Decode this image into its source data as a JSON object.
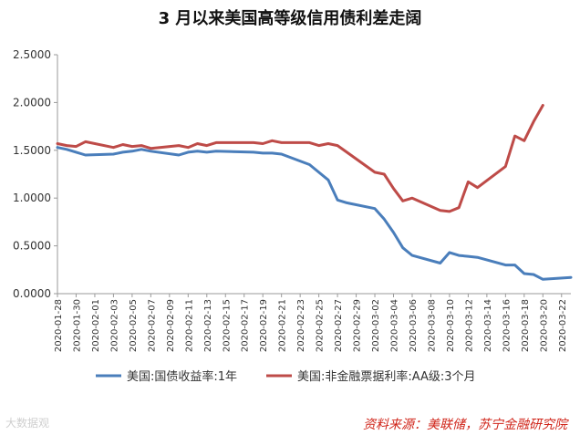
{
  "title": "3 月以来美国高等级信用债利差走阔",
  "source": "资料来源：美联储，苏宁金融研究院",
  "watermark": "大数据观",
  "chart_data": {
    "type": "line",
    "title": "3 月以来美国高等级信用债利差走阔",
    "xlabel": "",
    "ylabel": "",
    "ylim": [
      0,
      2.5
    ],
    "yticks": [
      "0.0000",
      "0.5000",
      "1.0000",
      "1.5000",
      "2.0000",
      "2.5000"
    ],
    "grid": false,
    "legend": "bottom",
    "x": [
      "2020-01-28",
      "2020-01-29",
      "2020-01-30",
      "2020-01-31",
      "2020-02-03",
      "2020-02-04",
      "2020-02-05",
      "2020-02-06",
      "2020-02-07",
      "2020-02-10",
      "2020-02-11",
      "2020-02-12",
      "2020-02-13",
      "2020-02-14",
      "2020-02-18",
      "2020-02-19",
      "2020-02-20",
      "2020-02-21",
      "2020-02-24",
      "2020-02-25",
      "2020-02-26",
      "2020-02-27",
      "2020-02-28",
      "2020-03-02",
      "2020-03-03",
      "2020-03-04",
      "2020-03-05",
      "2020-03-06",
      "2020-03-09",
      "2020-03-10",
      "2020-03-11",
      "2020-03-12",
      "2020-03-13",
      "2020-03-16",
      "2020-03-17",
      "2020-03-18",
      "2020-03-19",
      "2020-03-20",
      "2020-03-23"
    ],
    "xticks": [
      "2020-01-28",
      "2020-01-30",
      "2020-02-01",
      "2020-02-03",
      "2020-02-05",
      "2020-02-07",
      "2020-02-09",
      "2020-02-11",
      "2020-02-13",
      "2020-02-15",
      "2020-02-17",
      "2020-02-19",
      "2020-02-21",
      "2020-02-23",
      "2020-02-25",
      "2020-02-27",
      "2020-02-29",
      "2020-03-02",
      "2020-03-04",
      "2020-03-06",
      "2020-03-08",
      "2020-03-10",
      "2020-03-12",
      "2020-03-14",
      "2020-03-16",
      "2020-03-18",
      "2020-03-20",
      "2020-03-22"
    ],
    "series": [
      {
        "name": "美国:国债收益率:1年",
        "color": "#4a7ebb",
        "values": [
          1.53,
          1.51,
          1.48,
          1.45,
          1.46,
          1.48,
          1.49,
          1.51,
          1.49,
          1.45,
          1.48,
          1.49,
          1.48,
          1.49,
          1.48,
          1.47,
          1.47,
          1.46,
          1.35,
          1.27,
          1.19,
          0.98,
          0.95,
          0.89,
          0.78,
          0.64,
          0.48,
          0.4,
          0.32,
          0.43,
          0.4,
          0.39,
          0.38,
          0.3,
          0.3,
          0.21,
          0.2,
          0.15,
          0.17
        ]
      },
      {
        "name": "美国:非金融票据利率:AA级:3个月",
        "color": "#be4b48",
        "values": [
          1.57,
          1.55,
          1.54,
          1.59,
          1.53,
          1.56,
          1.54,
          1.55,
          1.52,
          1.55,
          1.53,
          1.57,
          1.55,
          1.58,
          1.58,
          1.57,
          1.6,
          1.58,
          1.58,
          1.55,
          1.57,
          1.55,
          1.48,
          1.27,
          1.25,
          1.1,
          0.97,
          1.0,
          0.87,
          0.86,
          0.9,
          1.17,
          1.11,
          1.33,
          1.65,
          1.6,
          1.8,
          1.97,
          null
        ]
      }
    ]
  }
}
